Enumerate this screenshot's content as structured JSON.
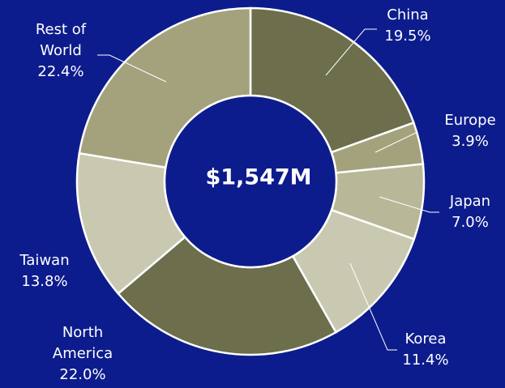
{
  "chart_data": {
    "type": "donut",
    "center_label": "$1,547M",
    "categories": [
      "China",
      "Europe",
      "Japan",
      "Korea",
      "North America",
      "Taiwan",
      "Rest of World"
    ],
    "values": [
      19.5,
      3.9,
      7.0,
      11.4,
      22.0,
      13.8,
      22.4
    ],
    "value_labels": [
      "19.5%",
      "3.9%",
      "7.0%",
      "11.4%",
      "22.0%",
      "13.8%",
      "22.4%"
    ],
    "colors": [
      "#6c6e4c",
      "#a3a27d",
      "#b8b899",
      "#c9c9b1",
      "#6c6e4c",
      "#c9c9b1",
      "#a3a27d"
    ]
  }
}
